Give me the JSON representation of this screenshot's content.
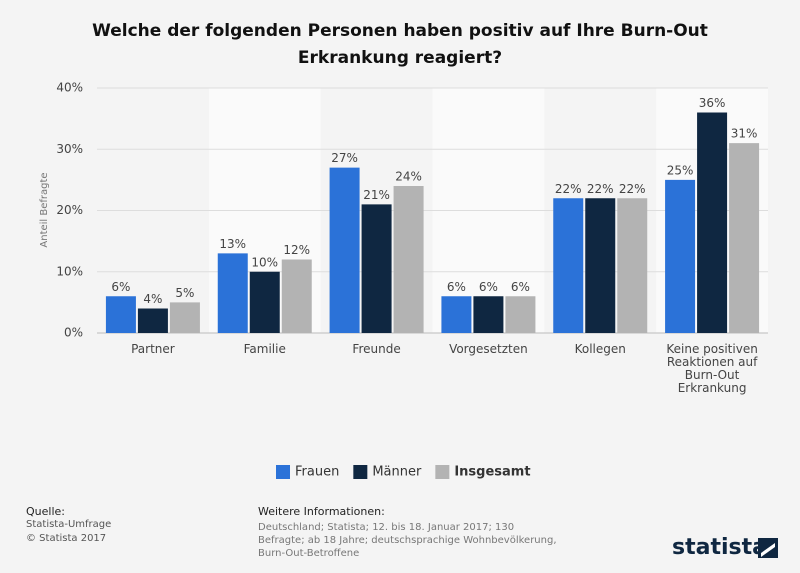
{
  "chart_data": {
    "type": "bar",
    "title": "Welche der folgenden Personen haben positiv auf Ihre Burn-Out Erkrankung reagiert?",
    "y_label": "Anteil Befragte",
    "categories": [
      "Partner",
      "Familie",
      "Freunde",
      "Vorgesetzten",
      "Kollegen",
      "Keine positiven Reaktionen auf Burn-Out Erkrankung"
    ],
    "series": [
      {
        "name": "Frauen",
        "color": "#2b72d8",
        "values": [
          6,
          13,
          27,
          6,
          22,
          25
        ],
        "value_labels": [
          "6%",
          "13%",
          "27%",
          "6%",
          "22%",
          "25%"
        ]
      },
      {
        "name": "Männer",
        "color": "#0f2741",
        "values": [
          4,
          10,
          21,
          6,
          22,
          36
        ],
        "value_labels": [
          "4%",
          "10%",
          "21%",
          "6%",
          "22%",
          "36%"
        ]
      },
      {
        "name": "Insgesamt",
        "color": "#b3b3b3",
        "values": [
          5,
          12,
          24,
          6,
          22,
          31
        ],
        "value_labels": [
          "5%",
          "12%",
          "24%",
          "6%",
          "22%",
          "31%"
        ]
      }
    ],
    "ylim": [
      0,
      40
    ],
    "yticks": [
      {
        "value": 0,
        "label": "0%"
      },
      {
        "value": 10,
        "label": "10%"
      },
      {
        "value": 20,
        "label": "20%"
      },
      {
        "value": 30,
        "label": "30%"
      },
      {
        "value": 40,
        "label": "40%"
      }
    ],
    "grid": true,
    "legend": "bottom"
  },
  "footer": {
    "source_title": "Quelle:",
    "source": "Statista-Umfrage",
    "copyright": "© Statista 2017",
    "info_title": "Weitere Informationen:",
    "info": "Deutschland; Statista; 12. bis 18. Januar 2017; 130 Befragte; ab 18 Jahre; deutschsprachige Wohnbevölkerung, Burn-Out-Betroffene",
    "logo": "statista"
  }
}
